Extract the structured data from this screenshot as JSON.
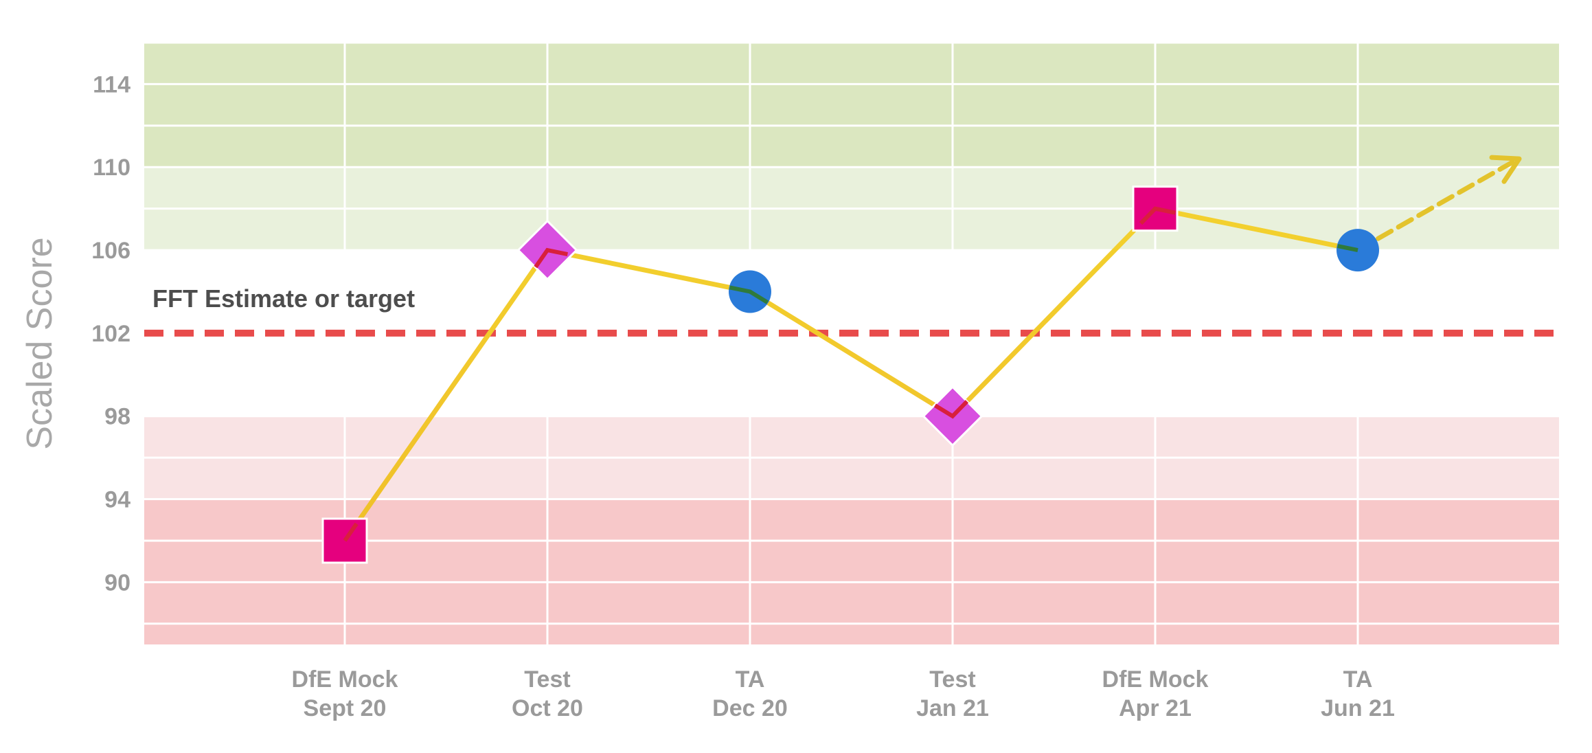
{
  "chart_data": {
    "type": "line",
    "title": "",
    "ylabel": "Scaled Score",
    "xlabel": "",
    "ylim": [
      87,
      116
    ],
    "yticks": [
      90,
      94,
      98,
      102,
      106,
      110,
      114
    ],
    "grid": true,
    "categories": [
      [
        "DfE Mock",
        "Sept 20"
      ],
      [
        "Test",
        "Oct 20"
      ],
      [
        "TA",
        "Dec 20"
      ],
      [
        "Test",
        "Jan 21"
      ],
      [
        "DfE Mock",
        "Apr 21"
      ],
      [
        "TA",
        "Jun 21"
      ]
    ],
    "series": [
      {
        "values": [
          92,
          106,
          104,
          98,
          108,
          106
        ],
        "markers": [
          "square",
          "diamond",
          "circle",
          "diamond",
          "square",
          "circle"
        ],
        "line_color": "#f0cc2a"
      }
    ],
    "projection": {
      "from_value": 106,
      "to_value": 110.4,
      "color": "#e3c32c"
    },
    "marker_colors": {
      "square": "#e5007e",
      "diamond": "#d84fe0",
      "circle": "#2a7bd9"
    },
    "reference_line": {
      "value": 102,
      "label": "FFT Estimate or target",
      "color": "#e84b4b"
    },
    "bands": [
      {
        "from": 110,
        "to": 116,
        "color": "#dbe7c0"
      },
      {
        "from": 106,
        "to": 110,
        "color": "#e9f1dc"
      },
      {
        "from": 98,
        "to": 106,
        "color": "#ffffff"
      },
      {
        "from": 94,
        "to": 98,
        "color": "#f9e3e4"
      },
      {
        "from": 87,
        "to": 94,
        "color": "#f7c8c9"
      }
    ]
  }
}
